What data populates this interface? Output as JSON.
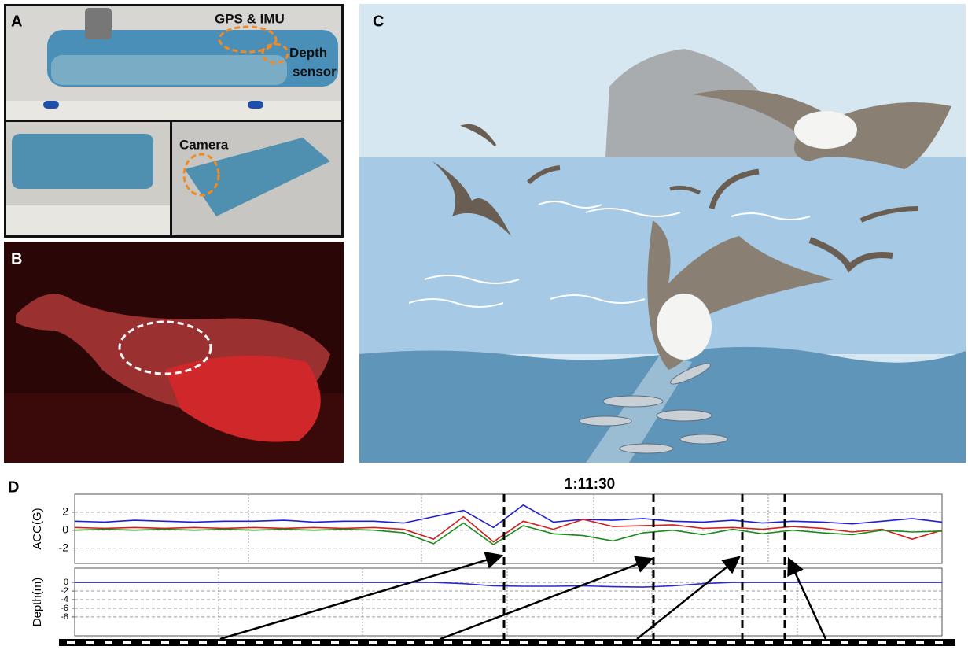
{
  "panels": {
    "a": {
      "label": "A",
      "annotations": [
        "GPS & IMU",
        "Depth",
        "sensor",
        "Camera"
      ]
    },
    "b": {
      "label": "B"
    },
    "c": {
      "label": "C"
    },
    "d": {
      "label": "D",
      "time_label": "1:11:30"
    }
  },
  "chart_data": [
    {
      "type": "line",
      "y_label": "ACC(G)",
      "ylim": [
        -3.7,
        4
      ],
      "yticks": [
        2,
        0,
        -2
      ],
      "grid": true,
      "series": [
        {
          "color": "#1f1fd0",
          "values": [
            1,
            0.9,
            1.1,
            1,
            0.9,
            1,
            1,
            1.1,
            0.9,
            1,
            1,
            0.8,
            1.5,
            2.2,
            0.3,
            2.8,
            0.9,
            1.2,
            1.1,
            1.3,
            1,
            0.9,
            1.1,
            0.8,
            1,
            0.9,
            0.7,
            1,
            1.3,
            0.9
          ]
        },
        {
          "color": "#d02020",
          "values": [
            0.3,
            0.2,
            0.3,
            0.2,
            0.3,
            0.2,
            0.3,
            0.2,
            0.3,
            0.2,
            0.3,
            0.1,
            -1,
            1.5,
            -1.3,
            1,
            0.1,
            1.2,
            0.4,
            0.5,
            0.6,
            0.2,
            0.3,
            0.1,
            0.4,
            0.2,
            -0.2,
            0.1,
            -1,
            0
          ]
        },
        {
          "color": "#1a8a1a",
          "values": [
            0,
            0.1,
            0,
            0.1,
            0,
            0.1,
            0,
            0.1,
            0,
            0.1,
            0,
            -0.3,
            -1.5,
            0.8,
            -1.6,
            0.5,
            -0.4,
            -0.6,
            -1.2,
            -0.3,
            0,
            -0.5,
            0.1,
            -0.4,
            0,
            -0.3,
            -0.5,
            0,
            -0.2,
            -0.1
          ]
        }
      ]
    },
    {
      "type": "line",
      "y_label": "Depth(m)",
      "ylim": [
        -12.4,
        3.3
      ],
      "yticks": [
        0,
        -2,
        -4,
        -6,
        -8
      ],
      "grid": true,
      "series": [
        {
          "color": "#2a2ad0",
          "values": [
            0,
            0,
            0,
            0,
            0,
            0,
            0,
            0,
            0,
            0,
            0,
            0,
            0,
            -0.3,
            -0.8,
            -0.9,
            -0.9,
            -0.8,
            -1,
            -1.1,
            -0.8,
            -0.3,
            0,
            0,
            0,
            0,
            0,
            0,
            0,
            0
          ]
        }
      ]
    }
  ]
}
